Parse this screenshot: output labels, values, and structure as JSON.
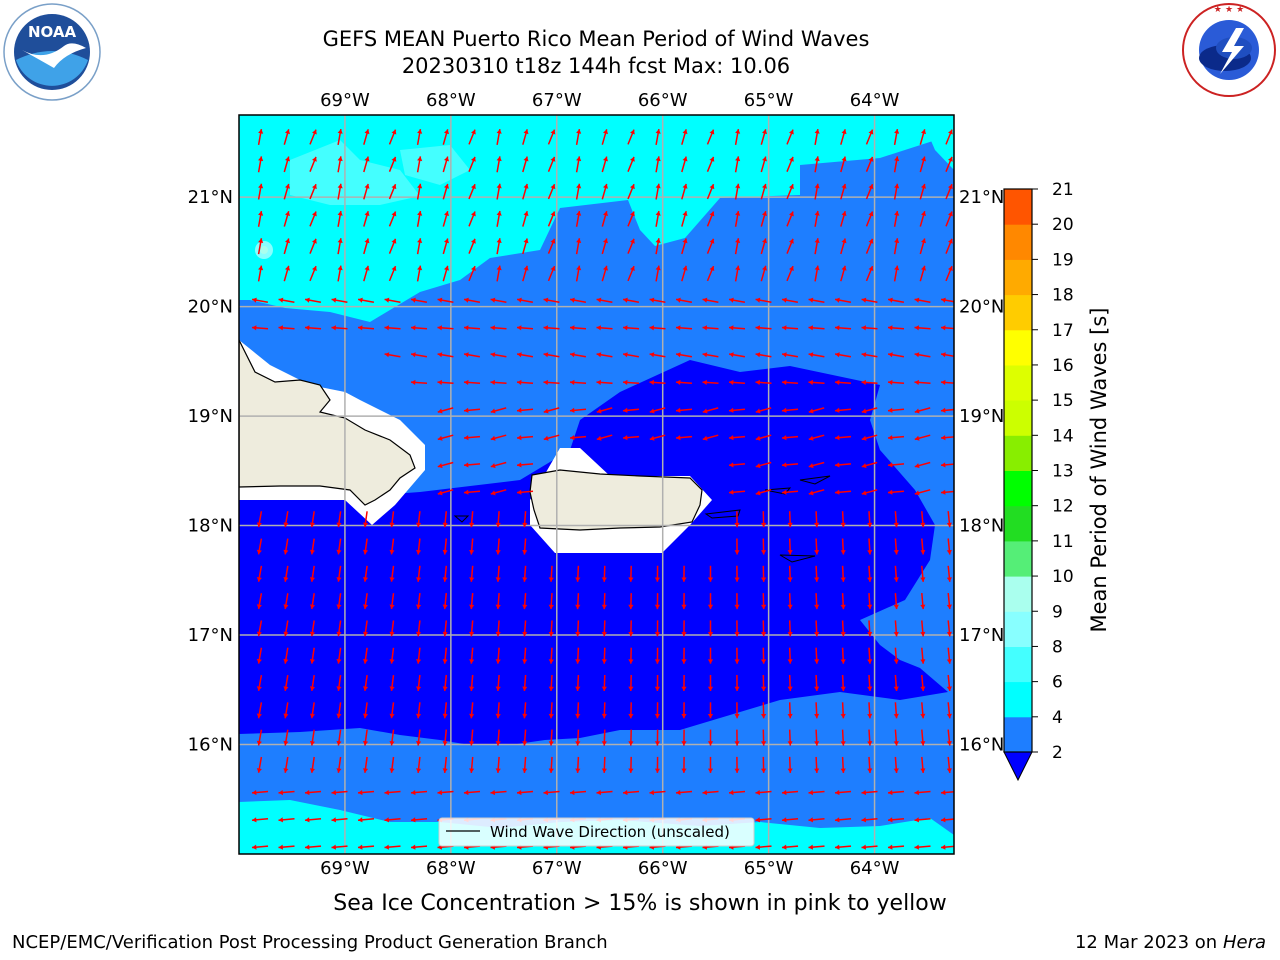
{
  "header": {
    "title_line1": "GEFS MEAN Puerto Rico Mean Period of Wind Waves",
    "title_line2": "20230310 t18z 144h fcst   Max: 10.06"
  },
  "logos": {
    "left": {
      "name": "noaa-logo",
      "text": "NOAA"
    },
    "right": {
      "name": "nws-logo",
      "text": "NATIONAL WEATHER SERVICE"
    }
  },
  "map": {
    "lon_labels": [
      "69°W",
      "68°W",
      "67°W",
      "66°W",
      "65°W",
      "64°W"
    ],
    "lat_labels": [
      "21°N",
      "20°N",
      "19°N",
      "18°N",
      "17°N",
      "16°N"
    ],
    "lon_range": [
      -70.0,
      -63.25
    ],
    "lat_range": [
      15.0,
      21.75
    ],
    "lon_grid": [
      -69,
      -68,
      -67,
      -66,
      -65,
      -64
    ],
    "lat_grid": [
      21,
      20,
      19,
      18,
      17,
      16
    ],
    "legend_label": "Wind Wave Direction (unscaled)",
    "arrow_color": "#ff0000",
    "land_color": "#eeecdd"
  },
  "colorbar": {
    "label": "Mean Period of Wind Waves [s]",
    "ticks": [
      "2",
      "4",
      "6",
      "8",
      "9",
      "10",
      "11",
      "12",
      "13",
      "14",
      "15",
      "16",
      "17",
      "18",
      "19",
      "20",
      "21"
    ],
    "colors": [
      "#1e7eff",
      "#00ffff",
      "#44ffff",
      "#88ffff",
      "#aaffee",
      "#55ee77",
      "#22dd22",
      "#00ff00",
      "#88ee00",
      "#ccff00",
      "#ddff00",
      "#ffff00",
      "#ffcc00",
      "#ffaa00",
      "#ff8800",
      "#ff5500",
      "#ff2200",
      "#ff0000"
    ],
    "extend_color": "#0000ff"
  },
  "footer": {
    "note": "Sea Ice Concentration > 15% is shown in pink to yellow",
    "branch": "NCEP/EMC/Verification Post Processing Product Generation Branch",
    "date": "12 Mar 2023 on",
    "machine": "Hera"
  }
}
